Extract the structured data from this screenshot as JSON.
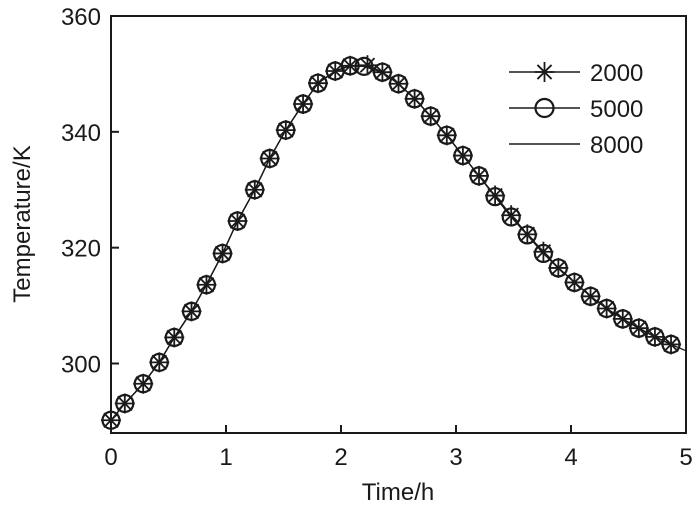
{
  "chart_data": {
    "type": "line",
    "xlabel": "Time/h",
    "ylabel": "Temperature/K",
    "xlim": [
      0,
      5
    ],
    "ylim": [
      288,
      360
    ],
    "xticks": [
      "0",
      "1",
      "2",
      "3",
      "4",
      "5"
    ],
    "yticks": [
      "300",
      "320",
      "340",
      "360"
    ],
    "grid": false,
    "legend_position": "top-right",
    "x": [
      0.0,
      0.125,
      0.25,
      0.375,
      0.5,
      0.625,
      0.75,
      0.875,
      1.0,
      1.125,
      1.25,
      1.375,
      1.5,
      1.625,
      1.75,
      1.875,
      2.0,
      2.125,
      2.25,
      2.375,
      2.5,
      2.625,
      2.75,
      2.875,
      3.0,
      3.125,
      3.25,
      3.375,
      3.5,
      3.625,
      3.75,
      3.875,
      4.0,
      4.125,
      4.25,
      4.375,
      4.5,
      4.625,
      4.75,
      4.875,
      5.0
    ],
    "series": [
      {
        "name": "2000",
        "marker": "asterisk",
        "x": [
          0.0,
          0.12,
          0.28,
          0.42,
          0.55,
          0.7,
          0.83,
          0.97,
          1.1,
          1.25,
          1.38,
          1.52,
          1.67,
          1.8,
          1.95,
          2.08,
          2.23,
          2.36,
          2.5,
          2.64,
          2.78,
          2.92,
          3.06,
          3.2,
          3.34,
          3.48,
          3.62,
          3.76,
          3.89,
          4.03,
          4.17,
          4.31,
          4.45,
          4.59,
          4.73,
          4.87
        ],
        "values": [
          290.2,
          293.1,
          296.5,
          300.2,
          304.5,
          309.0,
          313.6,
          319.0,
          324.6,
          330.0,
          335.4,
          340.3,
          344.8,
          348.4,
          350.5,
          351.4,
          351.5,
          350.3,
          348.3,
          345.7,
          342.7,
          339.4,
          335.9,
          332.4,
          329.0,
          325.6,
          322.3,
          319.3,
          316.5,
          314.0,
          311.6,
          309.5,
          307.7,
          306.1,
          304.6,
          303.3
        ]
      },
      {
        "name": "5000",
        "marker": "circle",
        "x": [
          0.0,
          0.12,
          0.28,
          0.42,
          0.55,
          0.7,
          0.83,
          0.97,
          1.1,
          1.25,
          1.38,
          1.52,
          1.67,
          1.8,
          1.95,
          2.08,
          2.2,
          2.36,
          2.5,
          2.64,
          2.78,
          2.92,
          3.06,
          3.2,
          3.34,
          3.48,
          3.62,
          3.76,
          3.89,
          4.03,
          4.17,
          4.31,
          4.45,
          4.59,
          4.73,
          4.87
        ],
        "values": [
          290.2,
          293.1,
          296.5,
          300.2,
          304.5,
          309.0,
          313.6,
          319.0,
          324.6,
          330.0,
          335.4,
          340.3,
          344.8,
          348.4,
          350.5,
          351.4,
          351.3,
          350.3,
          348.3,
          345.7,
          342.7,
          339.4,
          335.9,
          332.4,
          328.8,
          325.3,
          322.2,
          319.0,
          316.5,
          314.0,
          311.6,
          309.5,
          307.7,
          306.1,
          304.6,
          303.3
        ]
      },
      {
        "name": "8000",
        "marker": "none",
        "x": [
          0.0,
          0.12,
          0.28,
          0.42,
          0.55,
          0.7,
          0.83,
          0.97,
          1.1,
          1.25,
          1.38,
          1.52,
          1.67,
          1.8,
          1.95,
          2.08,
          2.2,
          2.36,
          2.5,
          2.64,
          2.78,
          2.92,
          3.06,
          3.2,
          3.34,
          3.48,
          3.62,
          3.76,
          3.89,
          4.03,
          4.17,
          4.31,
          4.45,
          4.59,
          4.73,
          4.87,
          5.0
        ],
        "values": [
          290.2,
          293.1,
          296.5,
          300.2,
          304.5,
          309.0,
          313.6,
          319.0,
          324.6,
          330.0,
          335.4,
          340.3,
          344.8,
          348.4,
          350.5,
          351.4,
          351.3,
          350.3,
          348.3,
          345.7,
          342.7,
          339.4,
          335.9,
          332.4,
          328.8,
          325.3,
          322.2,
          319.0,
          316.5,
          314.0,
          311.6,
          309.5,
          307.7,
          306.1,
          304.6,
          303.3,
          302.2
        ]
      }
    ]
  }
}
